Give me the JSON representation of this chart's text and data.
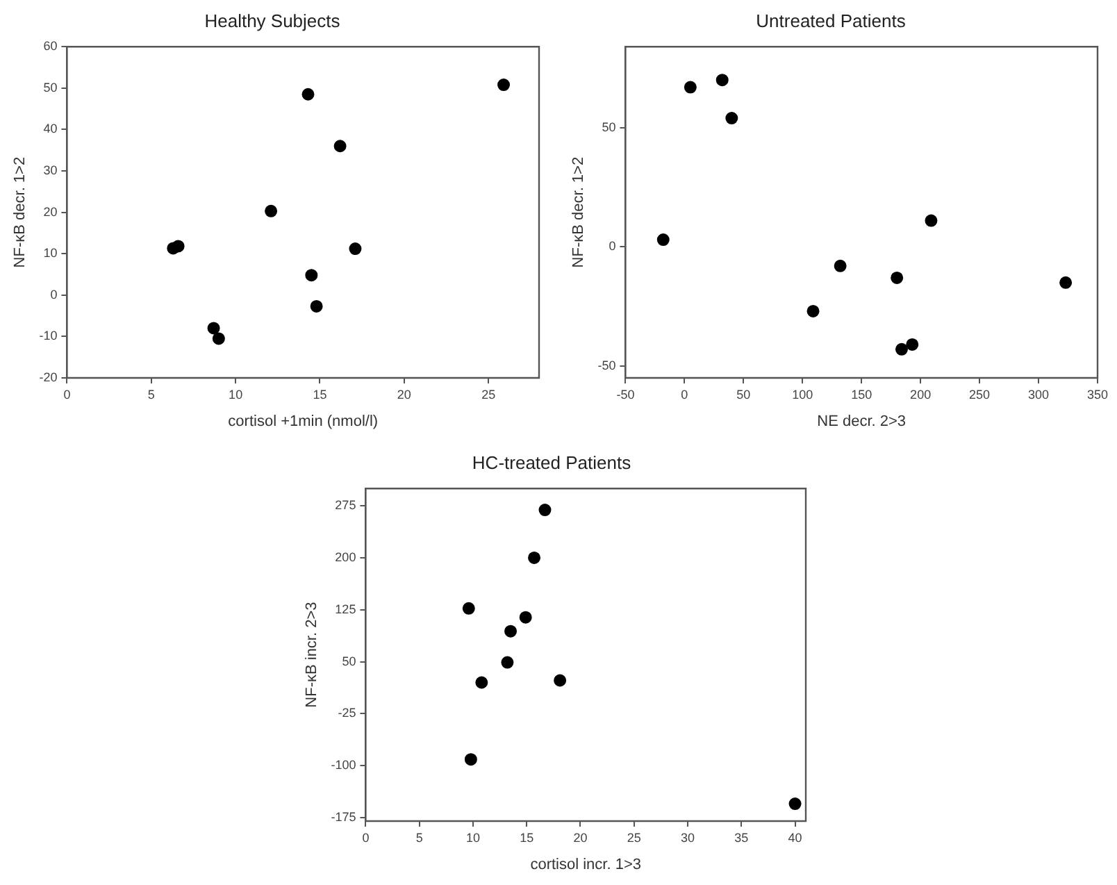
{
  "chart_data": [
    {
      "type": "scatter",
      "title": "Healthy Subjects",
      "xlabel": "cortisol +1min (nmol/l)",
      "ylabel": "NF-κB decr. 1>2",
      "xlim": [
        0,
        28
      ],
      "xticks": [
        0,
        5,
        10,
        15,
        20,
        25
      ],
      "ylim": [
        -20,
        60
      ],
      "yticks": [
        -20,
        -10,
        0,
        10,
        20,
        30,
        40,
        50,
        60
      ],
      "grid": false,
      "legend": false,
      "marker": "circle",
      "series": [
        {
          "color": "#000000",
          "x": [
            6.3,
            6.6,
            8.7,
            9,
            12.1,
            14.3,
            14.5,
            14.8,
            16.2,
            17.1,
            25.9
          ],
          "values": [
            11.3,
            11.8,
            -8,
            -10.5,
            20.3,
            48.5,
            4.8,
            -2.7,
            36,
            11.2,
            50.8
          ]
        }
      ]
    },
    {
      "type": "scatter",
      "title": "Untreated Patients",
      "xlabel": "NE decr. 2>3",
      "ylabel": "NF-κB decr. 1>2",
      "xlim": [
        -50,
        350
      ],
      "xticks": [
        -50,
        0,
        50,
        100,
        150,
        200,
        250,
        300,
        350
      ],
      "ylim": [
        -55,
        84
      ],
      "yticks": [
        -50,
        0,
        50
      ],
      "grid": false,
      "legend": false,
      "marker": "circle",
      "series": [
        {
          "color": "#000000",
          "x": [
            -18,
            5,
            32,
            40,
            109,
            132,
            180,
            184,
            193,
            209,
            323
          ],
          "values": [
            3,
            67,
            70,
            54,
            -27,
            -8,
            -13,
            -43,
            -41,
            11,
            -15
          ]
        }
      ]
    },
    {
      "type": "scatter",
      "title": "HC-treated Patients",
      "xlabel": "cortisol incr. 1>3",
      "ylabel": "NF-κB incr. 2>3",
      "xlim": [
        0,
        41
      ],
      "xticks": [
        0,
        5,
        10,
        15,
        20,
        25,
        30,
        35,
        40
      ],
      "ylim": [
        -180,
        300
      ],
      "yticks": [
        -175,
        -100,
        -25,
        50,
        125,
        200,
        275
      ],
      "grid": false,
      "legend": false,
      "marker": "circle",
      "series": [
        {
          "color": "#000000",
          "x": [
            9.6,
            9.8,
            10.8,
            13.2,
            13.5,
            14.9,
            15.7,
            16.7,
            18.1,
            40
          ],
          "values": [
            127,
            -91,
            20,
            49,
            94,
            114,
            200,
            269,
            23,
            -155
          ]
        }
      ]
    }
  ]
}
